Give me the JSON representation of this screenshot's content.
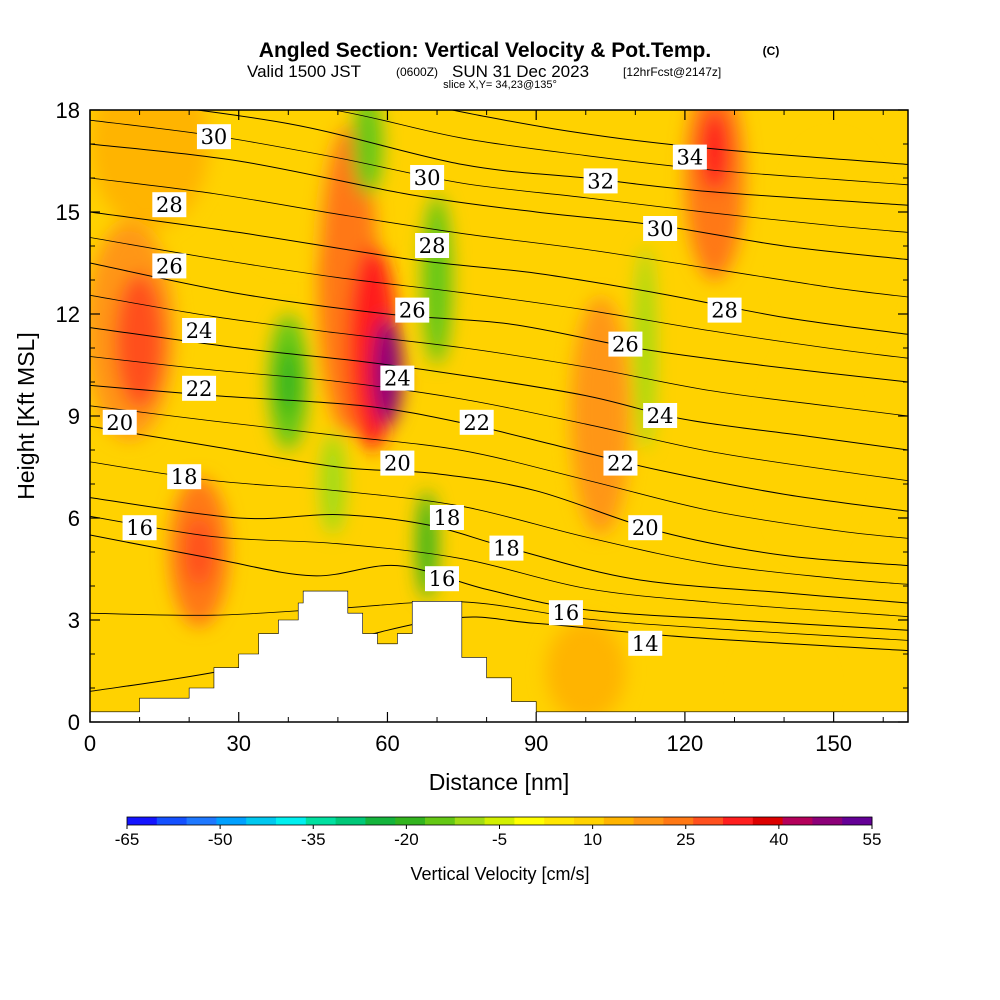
{
  "chart_data": {
    "type": "heatmap",
    "title": "Angled Section: Vertical Velocity & Pot.Temp.",
    "title_suffix": "(C)",
    "subtitle_parts": [
      "Valid 1500 JST",
      "(0600Z)",
      "SUN 31 Dec 2023",
      "[12hrFcst@2147z]"
    ],
    "slice_label": "slice X,Y= 34,23@135°",
    "xlabel": "Distance [nm]",
    "ylabel": "Height [Kft MSL]",
    "xlim": [
      0,
      165
    ],
    "ylim": [
      0,
      18
    ],
    "x_ticks": [
      0,
      30,
      60,
      90,
      120,
      150
    ],
    "y_ticks": [
      0,
      3,
      6,
      9,
      12,
      15,
      18
    ],
    "colorbar": {
      "label": "Vertical Velocity [cm/s]",
      "tick_labels": [
        "-65",
        "-50",
        "-35",
        "-20",
        "-5",
        "10",
        "25",
        "40",
        "55"
      ],
      "levels": [
        -65,
        -60,
        -55,
        -50,
        -45,
        -40,
        -35,
        -30,
        -25,
        -20,
        -15,
        -10,
        -5,
        0,
        5,
        10,
        15,
        20,
        25,
        30,
        35,
        40,
        45,
        50,
        55
      ],
      "colors": [
        "#1414ff",
        "#1450ff",
        "#1e78ff",
        "#00a0ff",
        "#00c8f0",
        "#00f0f0",
        "#00e0a0",
        "#00c878",
        "#14b43c",
        "#32b41e",
        "#64c814",
        "#a0dc14",
        "#d2f000",
        "#ffff00",
        "#ffe600",
        "#ffd200",
        "#ffb400",
        "#ff9614",
        "#ff7814",
        "#ff501e",
        "#ff1e1e",
        "#dc0000",
        "#b4005a",
        "#8c0078",
        "#640096"
      ]
    },
    "velocity_regions": [
      {
        "x": 8,
        "y": 11.5,
        "rx": 9,
        "ry": 3.2,
        "v": 24
      },
      {
        "x": 10,
        "y": 11.2,
        "rx": 5,
        "ry": 2,
        "v": 30
      },
      {
        "x": 22,
        "y": 5,
        "rx": 6,
        "ry": 2.2,
        "v": 25
      },
      {
        "x": 22,
        "y": 5,
        "rx": 3,
        "ry": 1,
        "v": 32
      },
      {
        "x": 12,
        "y": 17,
        "rx": 12,
        "ry": 2.5,
        "v": 18
      },
      {
        "x": 40,
        "y": 16,
        "rx": 10,
        "ry": 2.5,
        "v": 14
      },
      {
        "x": 52,
        "y": 13,
        "rx": 6,
        "ry": 4.5,
        "v": 25
      },
      {
        "x": 57,
        "y": 11,
        "rx": 5,
        "ry": 3,
        "v": 38
      },
      {
        "x": 60,
        "y": 10.3,
        "rx": 3,
        "ry": 1.6,
        "v": 50
      },
      {
        "x": 40,
        "y": 10,
        "rx": 4,
        "ry": 2,
        "v": -12
      },
      {
        "x": 40,
        "y": 10,
        "rx": 2,
        "ry": 1,
        "v": -20
      },
      {
        "x": 49,
        "y": 7,
        "rx": 2.5,
        "ry": 1.5,
        "v": -10
      },
      {
        "x": 56,
        "y": 17,
        "rx": 3,
        "ry": 1.5,
        "v": -12
      },
      {
        "x": 70,
        "y": 13,
        "rx": 3,
        "ry": 2.5,
        "v": -12
      },
      {
        "x": 68,
        "y": 5.2,
        "rx": 2,
        "ry": 1.6,
        "v": -18
      },
      {
        "x": 103,
        "y": 9,
        "rx": 6,
        "ry": 3.5,
        "v": 22
      },
      {
        "x": 126,
        "y": 16,
        "rx": 6,
        "ry": 3,
        "v": 25
      },
      {
        "x": 126,
        "y": 16.8,
        "rx": 3,
        "ry": 1.2,
        "v": 35
      },
      {
        "x": 112,
        "y": 11,
        "rx": 2,
        "ry": 3,
        "v": -10
      },
      {
        "x": 150,
        "y": 14,
        "rx": 10,
        "ry": 3,
        "v": 14
      },
      {
        "x": 145,
        "y": 8,
        "rx": 8,
        "ry": 3,
        "v": 12
      },
      {
        "x": 100,
        "y": 1.5,
        "rx": 8,
        "ry": 1.5,
        "v": 15
      },
      {
        "x": 140,
        "y": 1,
        "rx": 8,
        "ry": 1.2,
        "v": 14
      }
    ],
    "terrain": [
      [
        0,
        0.3
      ],
      [
        8,
        0.3
      ],
      [
        10,
        0.7
      ],
      [
        17,
        0.7
      ],
      [
        20,
        1.0
      ],
      [
        25,
        1.6
      ],
      [
        30,
        2.0
      ],
      [
        34,
        2.6
      ],
      [
        38,
        3.0
      ],
      [
        42,
        3.5
      ],
      [
        43,
        3.85
      ],
      [
        50,
        3.85
      ],
      [
        52,
        3.2
      ],
      [
        55,
        2.6
      ],
      [
        58,
        2.3
      ],
      [
        62,
        2.6
      ],
      [
        65,
        3.55
      ],
      [
        72,
        3.55
      ],
      [
        75,
        1.9
      ],
      [
        80,
        1.3
      ],
      [
        85,
        0.6
      ],
      [
        90,
        0.3
      ],
      [
        165,
        0.3
      ]
    ],
    "contours": [
      {
        "label": "14",
        "pts": [
          [
            0,
            0.9
          ],
          [
            30,
            1.6
          ],
          [
            70,
            3.0
          ],
          [
            90,
            2.9
          ],
          [
            120,
            2.5
          ],
          [
            165,
            2.1
          ]
        ],
        "label_at": [
          112,
          2.3
        ]
      },
      {
        "label": "16",
        "pts": [
          [
            0,
            5.5
          ],
          [
            25,
            4.8
          ],
          [
            45,
            4.3
          ],
          [
            62,
            4.6
          ],
          [
            80,
            3.9
          ],
          [
            100,
            3.3
          ],
          [
            130,
            3.0
          ],
          [
            165,
            2.7
          ]
        ],
        "label_at": [
          96,
          3.2
        ]
      },
      {
        "label": "18",
        "pts": [
          [
            0,
            6.6
          ],
          [
            30,
            6.0
          ],
          [
            50,
            6.1
          ],
          [
            68,
            5.8
          ],
          [
            85,
            5.1
          ],
          [
            110,
            4.2
          ],
          [
            140,
            3.8
          ],
          [
            165,
            3.5
          ]
        ],
        "label_at": [
          84,
          5.1
        ]
      },
      {
        "label": "20",
        "pts": [
          [
            0,
            8.7
          ],
          [
            25,
            8.1
          ],
          [
            50,
            7.5
          ],
          [
            70,
            7.3
          ],
          [
            90,
            6.8
          ],
          [
            115,
            5.6
          ],
          [
            140,
            4.9
          ],
          [
            165,
            4.6
          ]
        ],
        "label_at": [
          112,
          5.7
        ]
      },
      {
        "label": "22",
        "pts": [
          [
            0,
            9.9
          ],
          [
            25,
            9.6
          ],
          [
            55,
            9.3
          ],
          [
            75,
            8.8
          ],
          [
            95,
            8.1
          ],
          [
            115,
            7.4
          ],
          [
            140,
            6.7
          ],
          [
            165,
            6.2
          ]
        ],
        "label_at": [
          107,
          7.6
        ]
      },
      {
        "label": "24",
        "pts": [
          [
            0,
            11.6
          ],
          [
            30,
            11.0
          ],
          [
            55,
            10.6
          ],
          [
            75,
            10.2
          ],
          [
            100,
            9.6
          ],
          [
            120,
            8.9
          ],
          [
            145,
            8.4
          ],
          [
            165,
            8.0
          ]
        ],
        "label_at": [
          115,
          9.0
        ]
      },
      {
        "label": "26",
        "pts": [
          [
            0,
            13.5
          ],
          [
            30,
            12.6
          ],
          [
            60,
            12.0
          ],
          [
            85,
            11.7
          ],
          [
            110,
            11.0
          ],
          [
            135,
            10.5
          ],
          [
            165,
            10.0
          ]
        ],
        "label_at": [
          108,
          11.1
        ]
      },
      {
        "label": "28",
        "pts": [
          [
            0,
            15.0
          ],
          [
            30,
            14.4
          ],
          [
            65,
            13.6
          ],
          [
            90,
            13.2
          ],
          [
            115,
            12.6
          ],
          [
            140,
            11.9
          ],
          [
            165,
            11.4
          ]
        ],
        "label_at": [
          128,
          12.1
        ]
      },
      {
        "label": "30",
        "pts": [
          [
            0,
            17.0
          ],
          [
            30,
            16.5
          ],
          [
            65,
            15.5
          ],
          [
            90,
            15.0
          ],
          [
            115,
            14.6
          ],
          [
            140,
            14.0
          ],
          [
            165,
            13.6
          ]
        ],
        "label_at": [
          115,
          14.5
        ]
      },
      {
        "label": "32",
        "pts": [
          [
            0,
            18.4
          ],
          [
            40,
            17.6
          ],
          [
            75,
            16.4
          ],
          [
            100,
            16.0
          ],
          [
            125,
            15.6
          ],
          [
            165,
            15.2
          ]
        ],
        "label_at": [
          103,
          15.9
        ]
      },
      {
        "label": "34",
        "pts": [
          [
            40,
            19.0
          ],
          [
            80,
            17.8
          ],
          [
            105,
            17.2
          ],
          [
            130,
            16.8
          ],
          [
            165,
            16.4
          ]
        ],
        "label_at": [
          121,
          16.6
        ]
      }
    ],
    "extra_contour_labels": [
      {
        "label": "30",
        "at": [
          25,
          17.2
        ]
      },
      {
        "label": "28",
        "at": [
          16,
          15.2
        ]
      },
      {
        "label": "26",
        "at": [
          16,
          13.4
        ]
      },
      {
        "label": "24",
        "at": [
          22,
          11.5
        ]
      },
      {
        "label": "22",
        "at": [
          22,
          9.8
        ]
      },
      {
        "label": "20",
        "at": [
          6,
          8.8
        ]
      },
      {
        "label": "18",
        "at": [
          19,
          7.2
        ]
      },
      {
        "label": "16",
        "at": [
          10,
          5.7
        ]
      },
      {
        "label": "30",
        "at": [
          68,
          16.0
        ]
      },
      {
        "label": "28",
        "at": [
          69,
          14.0
        ]
      },
      {
        "label": "26",
        "at": [
          65,
          12.1
        ]
      },
      {
        "label": "24",
        "at": [
          62,
          10.1
        ]
      },
      {
        "label": "22",
        "at": [
          78,
          8.8
        ]
      },
      {
        "label": "20",
        "at": [
          62,
          7.6
        ]
      },
      {
        "label": "18",
        "at": [
          72,
          6.0
        ]
      },
      {
        "label": "16",
        "at": [
          71,
          4.2
        ]
      }
    ],
    "grid": false
  }
}
